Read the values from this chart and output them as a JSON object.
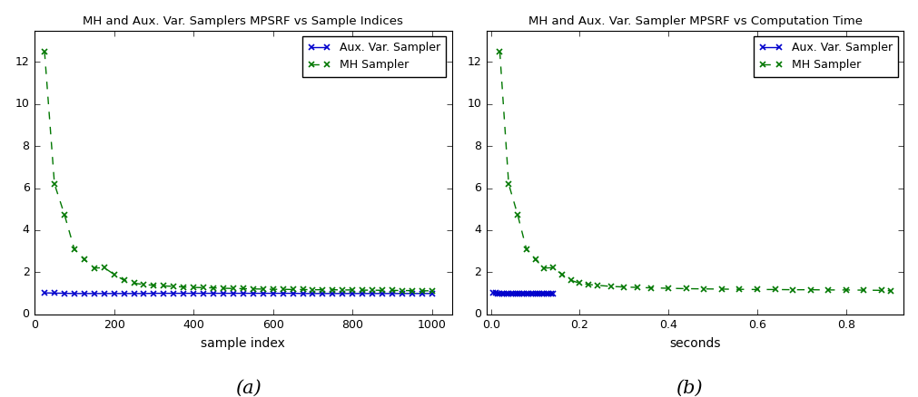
{
  "title_a": "MH and Aux. Var. Samplers MPSRF vs Sample Indices",
  "title_b": "MH and Aux. Var. Sampler MPSRF vs Computation Time",
  "xlabel_a": "sample index",
  "xlabel_b": "seconds",
  "ylim": [
    0,
    13.5
  ],
  "xlim_a": [
    0,
    1050
  ],
  "xlim_b": [
    -0.01,
    0.93
  ],
  "label_aux": "Aux. Var. Sampler",
  "label_mh": "MH Sampler",
  "color_aux": "#0000cc",
  "color_mh": "#007700",
  "subtitle_a": "(a)",
  "subtitle_b": "(b)",
  "mh_x_a": [
    25,
    50,
    75,
    100,
    125,
    150,
    175,
    200,
    225,
    250,
    275,
    300,
    325,
    350,
    375,
    400,
    425,
    450,
    475,
    500,
    525,
    550,
    575,
    600,
    625,
    650,
    675,
    700,
    725,
    750,
    775,
    800,
    825,
    850,
    875,
    900,
    925,
    950,
    975,
    1000
  ],
  "mh_y_a": [
    12.5,
    6.2,
    4.75,
    3.1,
    2.6,
    2.2,
    2.22,
    1.9,
    1.62,
    1.48,
    1.42,
    1.38,
    1.35,
    1.33,
    1.3,
    1.28,
    1.27,
    1.26,
    1.24,
    1.23,
    1.22,
    1.21,
    1.2,
    1.19,
    1.19,
    1.18,
    1.18,
    1.17,
    1.17,
    1.17,
    1.16,
    1.16,
    1.15,
    1.15,
    1.14,
    1.14,
    1.13,
    1.13,
    1.12,
    1.12
  ],
  "aux_x_a": [
    25,
    50,
    75,
    100,
    125,
    150,
    175,
    200,
    225,
    250,
    275,
    300,
    325,
    350,
    375,
    400,
    425,
    450,
    475,
    500,
    525,
    550,
    575,
    600,
    625,
    650,
    675,
    700,
    725,
    750,
    775,
    800,
    825,
    850,
    875,
    900,
    925,
    950,
    975,
    1000
  ],
  "aux_y_a": [
    1.02,
    1.01,
    1.0,
    0.99,
    0.99,
    0.99,
    0.99,
    0.99,
    0.99,
    0.99,
    0.99,
    1.0,
    1.0,
    1.0,
    1.0,
    1.0,
    1.0,
    1.0,
    1.0,
    1.0,
    1.0,
    1.0,
    1.0,
    1.0,
    1.0,
    1.0,
    0.99,
    0.99,
    0.99,
    0.99,
    0.99,
    0.99,
    0.99,
    0.99,
    0.99,
    0.99,
    0.99,
    0.99,
    0.99,
    0.99
  ],
  "mh_x_b": [
    0.02,
    0.04,
    0.06,
    0.08,
    0.1,
    0.12,
    0.14,
    0.16,
    0.18,
    0.2,
    0.22,
    0.24,
    0.27,
    0.3,
    0.33,
    0.36,
    0.4,
    0.44,
    0.48,
    0.52,
    0.56,
    0.6,
    0.64,
    0.68,
    0.72,
    0.76,
    0.8,
    0.84,
    0.88,
    0.9
  ],
  "mh_y_b": [
    12.5,
    6.2,
    4.75,
    3.1,
    2.6,
    2.2,
    2.22,
    1.9,
    1.62,
    1.48,
    1.42,
    1.38,
    1.33,
    1.3,
    1.28,
    1.26,
    1.24,
    1.22,
    1.21,
    1.2,
    1.19,
    1.18,
    1.18,
    1.17,
    1.17,
    1.16,
    1.16,
    1.15,
    1.14,
    1.12
  ],
  "aux_x_b": [
    0.005,
    0.01,
    0.015,
    0.02,
    0.025,
    0.03,
    0.035,
    0.04,
    0.045,
    0.05,
    0.055,
    0.06,
    0.065,
    0.07,
    0.075,
    0.08,
    0.085,
    0.09,
    0.095,
    0.1,
    0.105,
    0.11,
    0.115,
    0.12,
    0.125,
    0.13,
    0.135,
    0.14
  ],
  "aux_y_b": [
    1.02,
    1.01,
    1.0,
    0.99,
    0.99,
    0.99,
    0.99,
    0.99,
    0.99,
    0.99,
    0.99,
    1.0,
    1.0,
    1.0,
    1.0,
    1.0,
    1.0,
    1.0,
    1.0,
    1.0,
    1.0,
    1.0,
    1.0,
    1.0,
    1.0,
    0.99,
    0.99,
    0.99
  ],
  "xticks_a": [
    0,
    200,
    400,
    600,
    800,
    1000
  ],
  "xticks_b": [
    0.0,
    0.2,
    0.4,
    0.6,
    0.8
  ],
  "yticks": [
    0,
    2,
    4,
    6,
    8,
    10,
    12
  ]
}
